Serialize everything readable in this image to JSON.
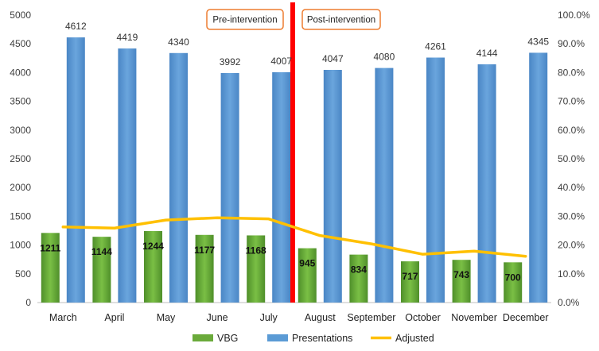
{
  "chart_data": {
    "type": "bar",
    "categories": [
      "March",
      "April",
      "May",
      "June",
      "July",
      "August",
      "September",
      "October",
      "November",
      "December"
    ],
    "series": [
      {
        "name": "VBG",
        "kind": "bar",
        "axis": "left",
        "color": "#6aaa3a",
        "values": [
          1211,
          1144,
          1244,
          1177,
          1168,
          945,
          834,
          717,
          743,
          700
        ]
      },
      {
        "name": "Presentations",
        "kind": "bar",
        "axis": "left",
        "color": "#5b9bd5",
        "values": [
          4612,
          4419,
          4340,
          3992,
          4007,
          4047,
          4080,
          4261,
          4144,
          4345
        ]
      },
      {
        "name": "Adjusted",
        "kind": "line",
        "axis": "right",
        "color": "#ffc000",
        "values": [
          26.3,
          25.9,
          28.7,
          29.5,
          29.1,
          23.3,
          20.4,
          16.8,
          17.9,
          16.1
        ]
      }
    ],
    "y_left": {
      "min": 0,
      "max": 5000,
      "step": 500
    },
    "y_right": {
      "min": 0,
      "max": 100,
      "step": 10,
      "format": "percent1"
    },
    "legend": {
      "position": "bottom",
      "items": [
        "VBG",
        "Presentations",
        "Adjusted"
      ]
    },
    "annotations": [
      {
        "text": "Pre-intervention",
        "near_category": "June"
      },
      {
        "text": "Post-intervention",
        "near_category": "August"
      }
    ],
    "divider": {
      "after_category": "July",
      "color": "#ff0000"
    },
    "grid": false
  }
}
